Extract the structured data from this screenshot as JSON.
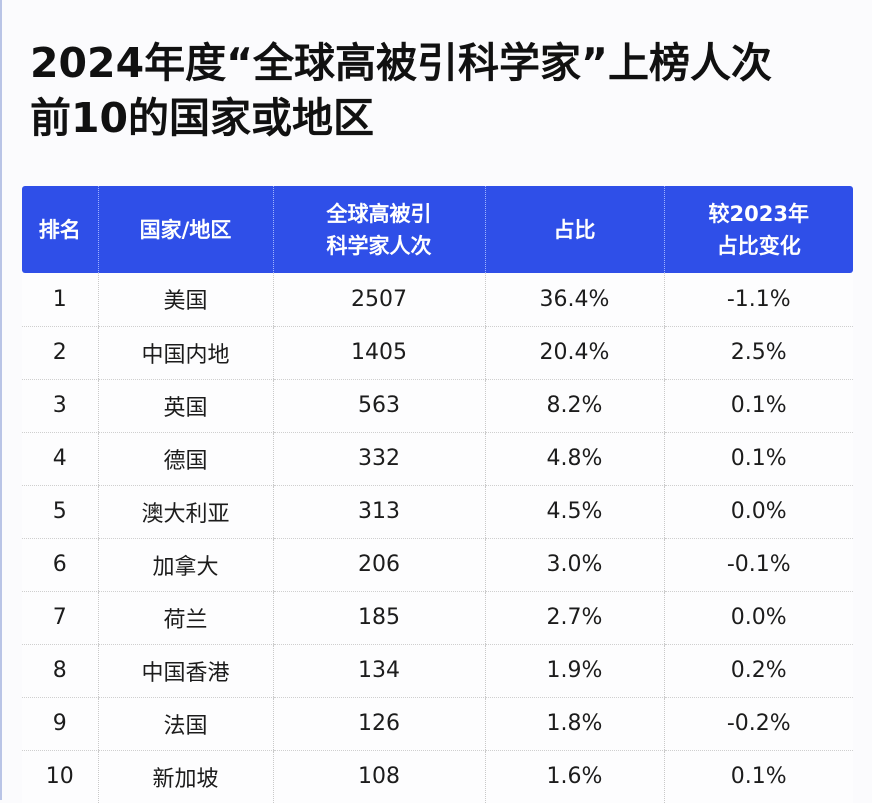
{
  "title": {
    "line1": "2024年度“全球高被引科学家”上榜人次",
    "line2": "前10的国家或地区"
  },
  "table": {
    "headers": [
      {
        "line1": "排名",
        "line2": ""
      },
      {
        "line1": "国家/地区",
        "line2": ""
      },
      {
        "line1": "全球高被引",
        "line2": "科学家人次"
      },
      {
        "line1": "占比",
        "line2": ""
      },
      {
        "line1": "较2023年",
        "line2": "占比变化"
      }
    ],
    "rows": [
      {
        "rank": "1",
        "region": "美国",
        "count": "2507",
        "share": "36.4%",
        "change": "-1.1%"
      },
      {
        "rank": "2",
        "region": "中国内地",
        "count": "1405",
        "share": "20.4%",
        "change": "2.5%"
      },
      {
        "rank": "3",
        "region": "英国",
        "count": "563",
        "share": "8.2%",
        "change": "0.1%"
      },
      {
        "rank": "4",
        "region": "德国",
        "count": "332",
        "share": "4.8%",
        "change": "0.1%"
      },
      {
        "rank": "5",
        "region": "澳大利亚",
        "count": "313",
        "share": "4.5%",
        "change": "0.0%"
      },
      {
        "rank": "6",
        "region": "加拿大",
        "count": "206",
        "share": "3.0%",
        "change": "-0.1%"
      },
      {
        "rank": "7",
        "region": "荷兰",
        "count": "185",
        "share": "2.7%",
        "change": "0.0%"
      },
      {
        "rank": "8",
        "region": "中国香港",
        "count": "134",
        "share": "1.9%",
        "change": "0.2%"
      },
      {
        "rank": "9",
        "region": "法国",
        "count": "126",
        "share": "1.8%",
        "change": "-0.2%"
      },
      {
        "rank": "10",
        "region": "新加坡",
        "count": "108",
        "share": "1.6%",
        "change": "0.1%"
      }
    ]
  },
  "colors": {
    "header_bg": "#2f4fe8",
    "header_text": "#ffffff",
    "body_text": "#1c1c1c",
    "title_text": "#111111"
  },
  "chart_data": {
    "type": "table",
    "title": "2024年度“全球高被引科学家”上榜人次前10的国家或地区",
    "columns": [
      "排名",
      "国家/地区",
      "全球高被引科学家人次",
      "占比",
      "较2023年占比变化"
    ],
    "categories": [
      "美国",
      "中国内地",
      "英国",
      "德国",
      "澳大利亚",
      "加拿大",
      "荷兰",
      "中国香港",
      "法国",
      "新加坡"
    ],
    "series": [
      {
        "name": "全球高被引科学家人次",
        "values": [
          2507,
          1405,
          563,
          332,
          313,
          206,
          185,
          134,
          126,
          108
        ]
      },
      {
        "name": "占比 (%)",
        "values": [
          36.4,
          20.4,
          8.2,
          4.8,
          4.5,
          3.0,
          2.7,
          1.9,
          1.8,
          1.6
        ]
      },
      {
        "name": "较2023年占比变化 (%)",
        "values": [
          -1.1,
          2.5,
          0.1,
          0.1,
          0.0,
          -0.1,
          0.0,
          0.2,
          -0.2,
          0.1
        ]
      }
    ],
    "rows": [
      [
        1,
        "美国",
        2507,
        "36.4%",
        "-1.1%"
      ],
      [
        2,
        "中国内地",
        1405,
        "20.4%",
        "2.5%"
      ],
      [
        3,
        "英国",
        563,
        "8.2%",
        "0.1%"
      ],
      [
        4,
        "德国",
        332,
        "4.8%",
        "0.1%"
      ],
      [
        5,
        "澳大利亚",
        313,
        "4.5%",
        "0.0%"
      ],
      [
        6,
        "加拿大",
        206,
        "3.0%",
        "-0.1%"
      ],
      [
        7,
        "荷兰",
        185,
        "2.7%",
        "0.0%"
      ],
      [
        8,
        "中国香港",
        134,
        "1.9%",
        "0.2%"
      ],
      [
        9,
        "法国",
        126,
        "1.8%",
        "-0.2%"
      ],
      [
        10,
        "新加坡",
        108,
        "1.6%",
        "0.1%"
      ]
    ]
  }
}
